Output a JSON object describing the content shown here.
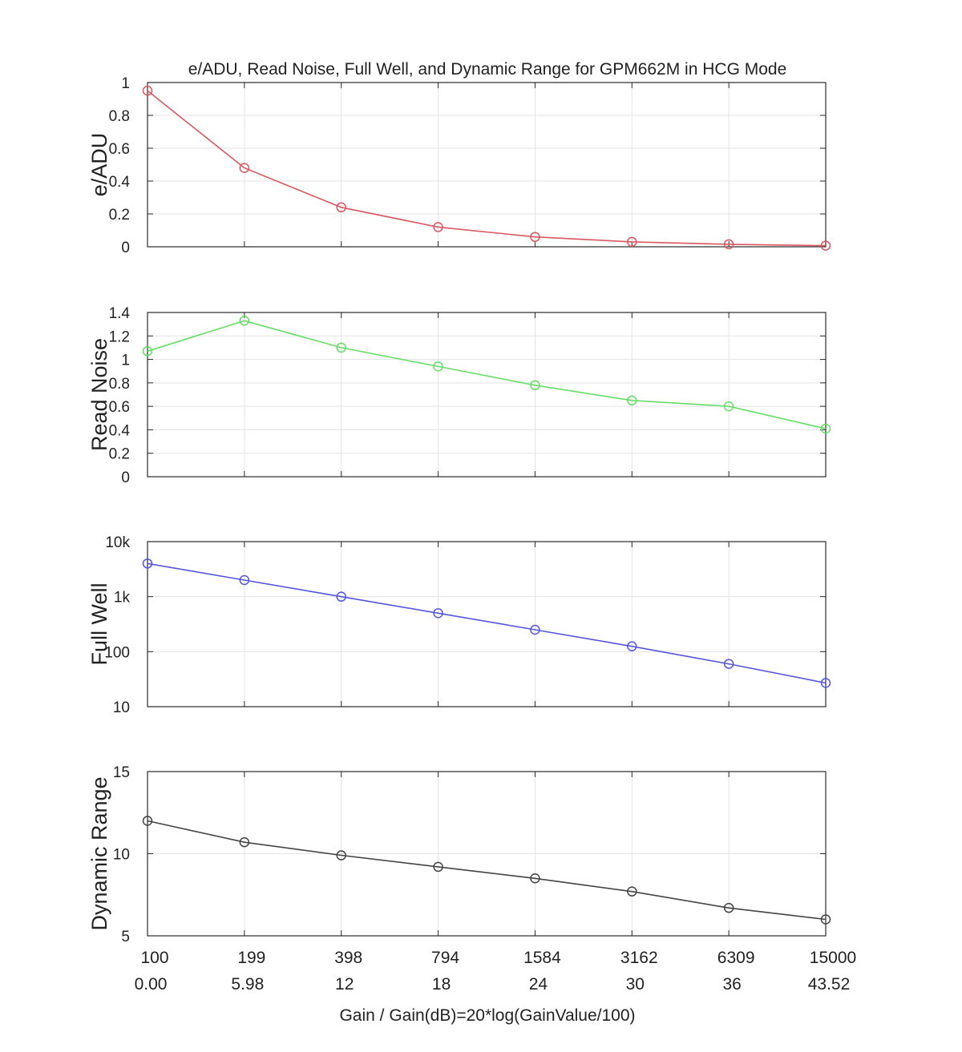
{
  "chart_data": {
    "title": "e/ADU, Read Noise, Full Well, and Dynamic Range for GPM662M in HCG Mode",
    "xlabel": "Gain / Gain(dB)=20*log(GainValue/100)",
    "x_tick_labels": [
      "100",
      "199",
      "398",
      "794",
      "1584",
      "3162",
      "6309",
      "15000"
    ],
    "x_tick_labels_db": [
      "0.00",
      "5.98",
      "12",
      "18",
      "24",
      "30",
      "36",
      "43.52"
    ],
    "subplots": [
      {
        "type": "line",
        "ylabel": "e/ADU",
        "yscale": "linear",
        "ylim": [
          0,
          1
        ],
        "yticks": [
          0,
          0.2,
          0.4,
          0.6,
          0.8,
          1
        ],
        "ytick_labels": [
          "0",
          "0.2",
          "0.4",
          "0.6",
          "0.8",
          "1"
        ],
        "color": "#d9575f",
        "marker": "circle",
        "grid": true,
        "values": [
          0.95,
          0.48,
          0.24,
          0.12,
          0.06,
          0.03,
          0.015,
          0.007
        ]
      },
      {
        "type": "line",
        "ylabel": "Read Noise",
        "yscale": "linear",
        "ylim": [
          0,
          1.4
        ],
        "yticks": [
          0,
          0.2,
          0.4,
          0.6,
          0.8,
          1,
          1.2,
          1.4
        ],
        "ytick_labels": [
          "0",
          "0.2",
          "0.4",
          "0.6",
          "0.8",
          "1",
          "1.2",
          "1.4"
        ],
        "color": "#66dd66",
        "marker": "circle",
        "grid": true,
        "values": [
          1.07,
          1.33,
          1.1,
          0.94,
          0.78,
          0.65,
          0.6,
          0.41
        ]
      },
      {
        "type": "line",
        "ylabel": "Full Well",
        "yscale": "log",
        "ylim": [
          10,
          10000
        ],
        "yticks": [
          10,
          100,
          1000,
          10000
        ],
        "ytick_labels": [
          "10",
          "100",
          "1k",
          "10k"
        ],
        "color": "#5555dd",
        "marker": "circle",
        "grid": true,
        "values": [
          4000,
          2000,
          1000,
          500,
          250,
          125,
          60,
          27
        ]
      },
      {
        "type": "line",
        "ylabel": "Dynamic Range",
        "yscale": "linear",
        "ylim": [
          5,
          15
        ],
        "yticks": [
          5,
          10,
          15
        ],
        "ytick_labels": [
          "5",
          "10",
          "15"
        ],
        "color": "#444444",
        "marker": "circle",
        "grid": true,
        "values": [
          12.0,
          10.7,
          9.9,
          9.2,
          8.5,
          7.7,
          6.7,
          6.0
        ]
      }
    ]
  }
}
